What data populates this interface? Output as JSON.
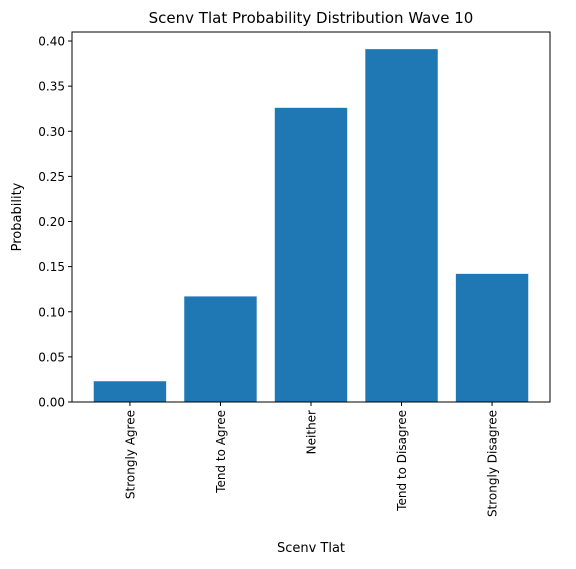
{
  "chart_data": {
    "type": "bar",
    "title": "Scenv Tlat Probability Distribution Wave 10",
    "xlabel": "Scenv Tlat",
    "ylabel": "Probability",
    "categories": [
      "Strongly Agree",
      "Tend to Agree",
      "Neither",
      "Tend to Disagree",
      "Strongly Disagree"
    ],
    "values": [
      0.023,
      0.117,
      0.326,
      0.391,
      0.142
    ],
    "ylim": [
      0,
      0.41
    ],
    "yticks": [
      0.0,
      0.05,
      0.1,
      0.15,
      0.2,
      0.25,
      0.3,
      0.35,
      0.4
    ],
    "ytick_labels": [
      "0.00",
      "0.05",
      "0.10",
      "0.15",
      "0.20",
      "0.25",
      "0.30",
      "0.35",
      "0.40"
    ],
    "bar_color": "#1f77b4",
    "grid": false,
    "legend": "none"
  }
}
